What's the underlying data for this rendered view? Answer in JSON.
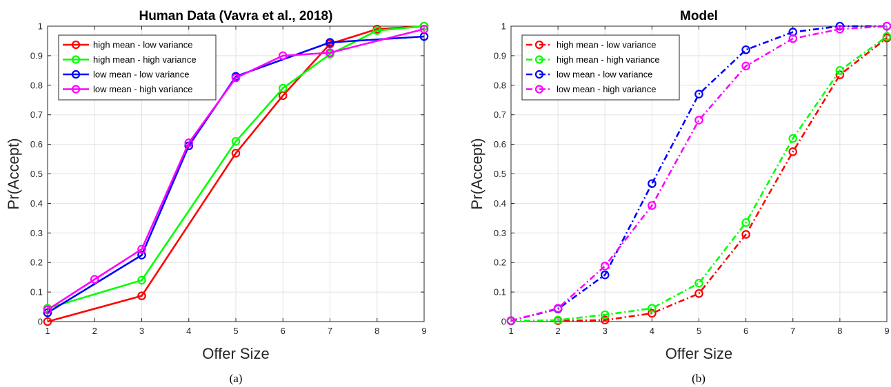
{
  "chart_data": [
    {
      "type": "line",
      "title": "Human Data (Vavra et al., 2018)",
      "xlabel": "Offer Size",
      "ylabel": "Pr(Accept)",
      "caption": "(a)",
      "x": [
        1,
        2,
        3,
        4,
        5,
        6,
        7,
        8,
        9
      ],
      "xlim": [
        1,
        9
      ],
      "ylim": [
        0,
        1
      ],
      "xticks": [
        "1",
        "2",
        "3",
        "4",
        "5",
        "6",
        "7",
        "8",
        "9"
      ],
      "yticks": [
        "0",
        "0.1",
        "0.2",
        "0.3",
        "0.4",
        "0.5",
        "0.6",
        "0.7",
        "0.8",
        "0.9",
        "1"
      ],
      "grid": true,
      "legend_position": "top-left",
      "series": [
        {
          "name": "high mean - low variance",
          "color": "#ff0000",
          "dash": "solid",
          "x": [
            1,
            3,
            5,
            6,
            7,
            8,
            9
          ],
          "values": [
            0.0,
            0.087,
            0.57,
            0.765,
            0.94,
            0.99,
            1.0
          ]
        },
        {
          "name": "high mean - high variance",
          "color": "#00ff00",
          "dash": "solid",
          "x": [
            1,
            3,
            5,
            6,
            7,
            8,
            9
          ],
          "values": [
            0.045,
            0.14,
            0.61,
            0.79,
            0.905,
            0.985,
            1.0
          ]
        },
        {
          "name": "low mean - low variance",
          "color": "#0000ff",
          "dash": "solid",
          "x": [
            1,
            3,
            4,
            5,
            7,
            9
          ],
          "values": [
            0.03,
            0.225,
            0.595,
            0.83,
            0.945,
            0.965
          ]
        },
        {
          "name": "low mean - high variance",
          "color": "#ff00ff",
          "dash": "solid",
          "x": [
            1,
            2,
            3,
            4,
            5,
            6,
            7,
            9
          ],
          "values": [
            0.04,
            0.143,
            0.245,
            0.605,
            0.825,
            0.9,
            0.91,
            0.99
          ]
        }
      ]
    },
    {
      "type": "line",
      "title": "Model",
      "xlabel": "Offer Size",
      "ylabel": "Pr(Accept)",
      "caption": "(b)",
      "x": [
        1,
        2,
        3,
        4,
        5,
        6,
        7,
        8,
        9
      ],
      "xlim": [
        1,
        9
      ],
      "ylim": [
        0,
        1
      ],
      "xticks": [
        "1",
        "2",
        "3",
        "4",
        "5",
        "6",
        "7",
        "8",
        "9"
      ],
      "yticks": [
        "0",
        "0.1",
        "0.2",
        "0.3",
        "0.4",
        "0.5",
        "0.6",
        "0.7",
        "0.8",
        "0.9",
        "1"
      ],
      "grid": true,
      "legend_position": "top-left",
      "series": [
        {
          "name": "high mean - low variance",
          "color": "#ff0000",
          "dash": "dashdot",
          "x": [
            1,
            2,
            3,
            4,
            5,
            6,
            7,
            8,
            9
          ],
          "values": [
            0.002,
            0.003,
            0.005,
            0.028,
            0.095,
            0.295,
            0.575,
            0.835,
            0.96
          ]
        },
        {
          "name": "high mean - high variance",
          "color": "#00ff00",
          "dash": "dashdot",
          "x": [
            1,
            2,
            3,
            4,
            5,
            6,
            7,
            8,
            9
          ],
          "values": [
            0.002,
            0.005,
            0.023,
            0.045,
            0.13,
            0.335,
            0.62,
            0.85,
            0.965
          ]
        },
        {
          "name": "low mean - low variance",
          "color": "#0000ff",
          "dash": "dashdot",
          "x": [
            1,
            2,
            3,
            4,
            5,
            6,
            7,
            8,
            9
          ],
          "values": [
            0.003,
            0.043,
            0.158,
            0.467,
            0.77,
            0.92,
            0.98,
            1.0,
            1.0
          ]
        },
        {
          "name": "low mean - high variance",
          "color": "#ff00ff",
          "dash": "dashdot",
          "x": [
            1,
            2,
            3,
            4,
            5,
            6,
            7,
            8,
            9
          ],
          "values": [
            0.003,
            0.045,
            0.188,
            0.393,
            0.682,
            0.865,
            0.958,
            0.99,
            1.0
          ]
        }
      ]
    }
  ]
}
